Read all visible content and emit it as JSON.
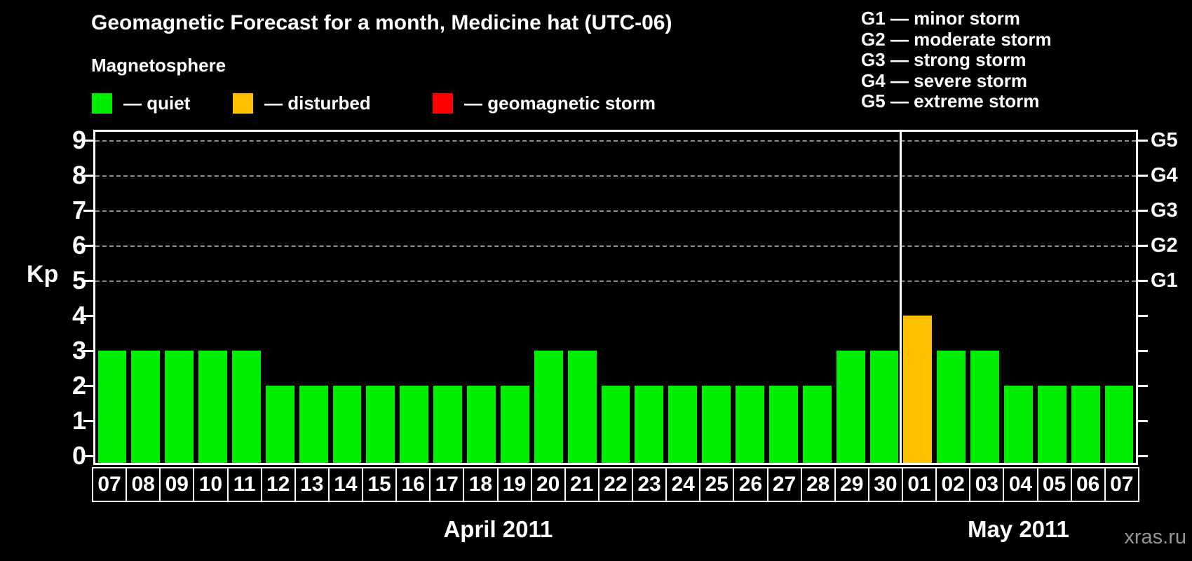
{
  "title": "Geomagnetic Forecast for a month, Medicine hat (UTC-06)",
  "subtitle": "Magnetosphere",
  "legend": {
    "items": [
      {
        "key": "quiet",
        "label": "— quiet",
        "color": "#00EE00"
      },
      {
        "key": "disturbed",
        "label": "— disturbed",
        "color": "#FFC000"
      },
      {
        "key": "storm",
        "label": "— geomagnetic storm",
        "color": "#FF0000"
      }
    ]
  },
  "status_colors": {
    "quiet": "#00EE00",
    "disturbed": "#FFC000",
    "storm": "#FF0000"
  },
  "storm_legend": [
    "G1 — minor storm",
    "G2 — moderate storm",
    "G3 — strong storm",
    "G4 — severe storm",
    "G5 — extreme storm"
  ],
  "y_axis": {
    "label": "Kp",
    "tick_labels": [
      "0",
      "1",
      "2",
      "3",
      "4",
      "5",
      "6",
      "7",
      "8",
      "9"
    ]
  },
  "right_axis": [
    {
      "label": "G1",
      "kp": 5
    },
    {
      "label": "G2",
      "kp": 6
    },
    {
      "label": "G3",
      "kp": 7
    },
    {
      "label": "G4",
      "kp": 8
    },
    {
      "label": "G5",
      "kp": 9
    }
  ],
  "months": [
    {
      "label": "April 2011",
      "days": [
        "07",
        "08",
        "09",
        "10",
        "11",
        "12",
        "13",
        "14",
        "15",
        "16",
        "17",
        "18",
        "19",
        "20",
        "21",
        "22",
        "23",
        "24",
        "25",
        "26",
        "27",
        "28",
        "29",
        "30"
      ]
    },
    {
      "label": "May 2011",
      "days": [
        "01",
        "02",
        "03",
        "04",
        "05",
        "06",
        "07"
      ]
    }
  ],
  "watermark": "xras.ru",
  "chart_data": {
    "type": "bar",
    "title": "Geomagnetic Forecast for a month, Medicine hat (UTC-06)",
    "xlabel": "",
    "ylabel": "Kp",
    "ylim": [
      0,
      9
    ],
    "grid": "dashed horizontal at Kp 5-9 (G1-G5 levels)",
    "legend_position": "top-left and top-right",
    "categories": [
      "07",
      "08",
      "09",
      "10",
      "11",
      "12",
      "13",
      "14",
      "15",
      "16",
      "17",
      "18",
      "19",
      "20",
      "21",
      "22",
      "23",
      "24",
      "25",
      "26",
      "27",
      "28",
      "29",
      "30",
      "01",
      "02",
      "03",
      "04",
      "05",
      "06",
      "07"
    ],
    "values": [
      3,
      3,
      3,
      3,
      3,
      2,
      2,
      2,
      2,
      2,
      2,
      2,
      2,
      3,
      3,
      2,
      2,
      2,
      2,
      2,
      2,
      2,
      3,
      3,
      4,
      3,
      3,
      2,
      2,
      2,
      2
    ],
    "statuses": [
      "quiet",
      "quiet",
      "quiet",
      "quiet",
      "quiet",
      "quiet",
      "quiet",
      "quiet",
      "quiet",
      "quiet",
      "quiet",
      "quiet",
      "quiet",
      "quiet",
      "quiet",
      "quiet",
      "quiet",
      "quiet",
      "quiet",
      "quiet",
      "quiet",
      "quiet",
      "quiet",
      "quiet",
      "disturbed",
      "quiet",
      "quiet",
      "quiet",
      "quiet",
      "quiet",
      "quiet"
    ]
  }
}
